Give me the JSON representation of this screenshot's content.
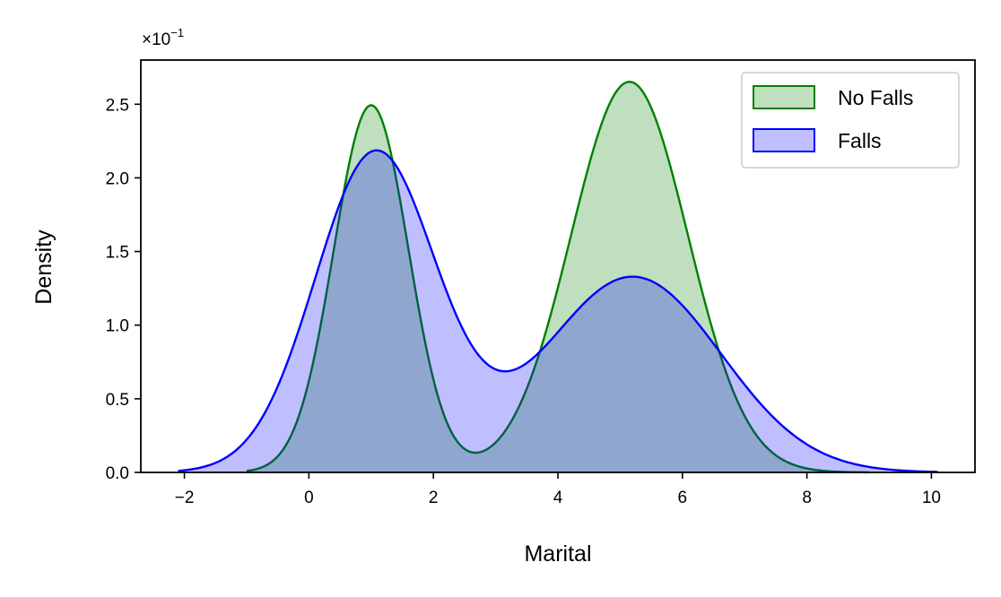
{
  "chart_data": {
    "type": "area",
    "xlabel": "Marital",
    "ylabel": "Density",
    "xlim": [
      -2.7,
      10.7
    ],
    "ylim": [
      0,
      0.28
    ],
    "x_ticks": [
      -2,
      0,
      2,
      4,
      6,
      8,
      10
    ],
    "x_tick_labels": [
      "−2",
      "0",
      "2",
      "4",
      "6",
      "8",
      "10"
    ],
    "y_ticks": [
      0.0,
      0.05,
      0.1,
      0.15,
      0.2,
      0.25
    ],
    "y_tick_labels": [
      "0.0",
      "0.5",
      "1.0",
      "1.5",
      "2.0",
      "2.5"
    ],
    "y_multiplier": "×10",
    "y_multiplier_exp": "−1",
    "grid": false,
    "legend_position": "top-right",
    "series": [
      {
        "name": "No Falls",
        "color": "#008000",
        "fill": "#008000",
        "fill_opacity": 0.25,
        "x_range": [
          -1.0,
          9.0
        ],
        "components": [
          {
            "weight": 0.375,
            "mean": 1.0,
            "sd": 0.6
          },
          {
            "weight": 0.625,
            "mean": 5.15,
            "sd": 0.94
          }
        ],
        "peaks": [
          [
            1.0,
            0.249
          ],
          [
            5.15,
            0.266
          ]
        ],
        "valley": [
          3.05,
          0.022
        ]
      },
      {
        "name": "Falls",
        "color": "#0000ff",
        "fill": "#0000ff",
        "fill_opacity": 0.25,
        "x_range": [
          -2.1,
          10.1
        ],
        "components": [
          {
            "weight": 0.527,
            "mean": 1.07,
            "sd": 0.97
          },
          {
            "weight": 0.473,
            "mean": 5.2,
            "sd": 1.42
          }
        ],
        "peaks": [
          [
            1.1,
            0.218
          ],
          [
            5.15,
            0.133
          ]
        ],
        "valley": [
          3.35,
          0.072
        ]
      }
    ]
  }
}
